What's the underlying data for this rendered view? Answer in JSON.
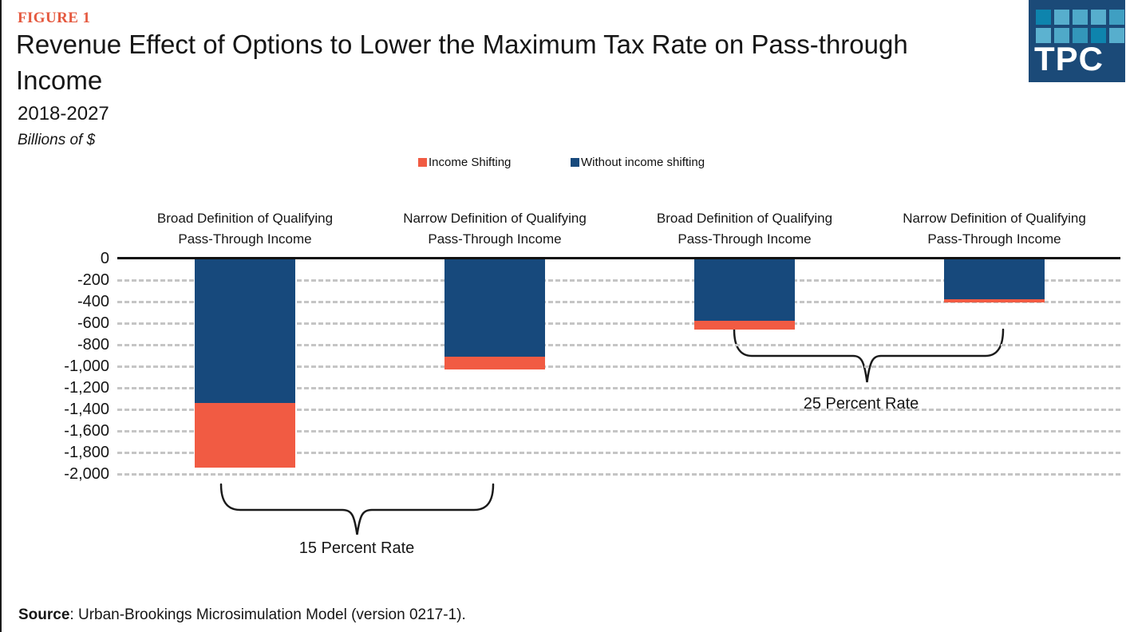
{
  "figure_label": "FIGURE 1",
  "title": "Revenue Effect of Options to Lower the Maximum Tax Rate on Pass-through Income",
  "subtitle": "2018-2027",
  "units_label": "Billions of $",
  "source": {
    "prefix": "Source",
    "text": ": Urban-Brookings Microsimulation Model (version 0217-1)."
  },
  "logo": {
    "text": "TPC",
    "background": "#1B4A78",
    "square_rows": [
      [
        "#0E84AD",
        "#57AECD",
        "#4FA9C9",
        "#57AECD",
        "#3F9FC2"
      ],
      [
        "#5CB2D0",
        "#4FA9C9",
        "#3396BA",
        "#0E84AD",
        "#57AECD"
      ]
    ]
  },
  "legend": [
    {
      "label": "Income Shifting",
      "color": "#F15B43"
    },
    {
      "label": "Without income shifting",
      "color": "#17497C"
    }
  ],
  "chart_data": {
    "type": "bar",
    "stacked": true,
    "title": "Revenue Effect of Options to Lower the Maximum Tax Rate on Pass-through Income, 2018-2027",
    "ylabel": "Billions of $",
    "categories": [
      "Broad Definition of Qualifying Pass-Through Income",
      "Narrow Definition of Qualifying Pass-Through Income",
      "Broad Definition of Qualifying Pass-Through Income",
      "Narrow Definition of Qualifying Pass-Through Income"
    ],
    "series": [
      {
        "name": "Without income shifting",
        "color": "#17497C",
        "values": [
          -1330,
          -900,
          -570,
          -370
        ]
      },
      {
        "name": "Income Shifting",
        "color": "#F15B43",
        "values": [
          -600,
          -120,
          -80,
          -30
        ]
      }
    ],
    "totals": [
      -1930,
      -1020,
      -650,
      -400
    ],
    "ylim": [
      -2000,
      0
    ],
    "yticks": [
      0,
      -200,
      -400,
      -600,
      -800,
      -1000,
      -1200,
      -1400,
      -1600,
      -1800,
      -2000
    ],
    "ytick_labels": [
      "0",
      "-200",
      "-400",
      "-600",
      "-800",
      "-1,000",
      "-1,200",
      "-1,400",
      "-1,600",
      "-1,800",
      "-2,000"
    ],
    "grid": "horizontal-dashed",
    "legend_position": "top",
    "annotations": [
      {
        "label": "15 Percent Rate",
        "groups_categories": [
          0,
          1
        ]
      },
      {
        "label": "25 Percent Rate",
        "groups_categories": [
          2,
          3
        ]
      }
    ]
  }
}
